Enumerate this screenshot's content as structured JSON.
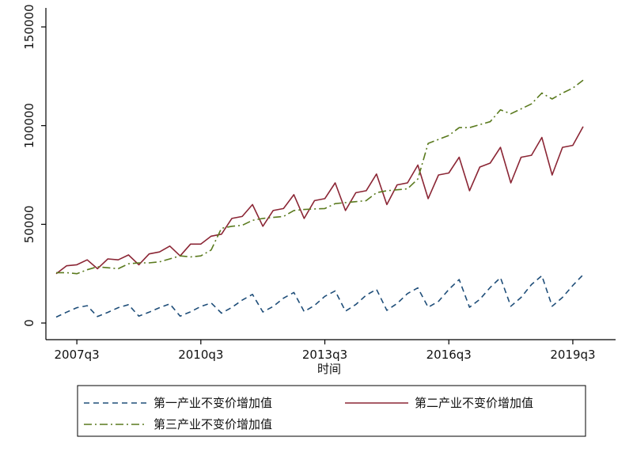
{
  "chart_data": {
    "type": "line",
    "title": "",
    "xlabel": "时间",
    "ylabel": "",
    "ylim": [
      0,
      150000
    ],
    "yticks": [
      "0",
      "50000",
      "100000",
      "150000"
    ],
    "xticks": [
      "2007q3",
      "2010q3",
      "2013q3",
      "2016q3",
      "2019q3"
    ],
    "x_start": "2007q1",
    "grid": false,
    "legend_position": "bottom",
    "series": [
      {
        "name": "第一产业不变价增加值",
        "style": "dashed",
        "color": "#1f4e79",
        "values": [
          3000,
          5500,
          7800,
          8800,
          3300,
          5400,
          7800,
          9300,
          3500,
          5500,
          7800,
          9700,
          3500,
          5700,
          8400,
          10200,
          5000,
          7900,
          11600,
          14500,
          5600,
          8400,
          12600,
          15500,
          5800,
          8900,
          13500,
          16300,
          6000,
          9400,
          14100,
          17100,
          6400,
          9900,
          14900,
          17800,
          8000,
          11000,
          17000,
          22000,
          8000,
          12000,
          18000,
          23000,
          8500,
          13000,
          19500,
          24000,
          8500,
          13000,
          19000,
          24500
        ]
      },
      {
        "name": "第二产业不变价增加值",
        "style": "solid",
        "color": "#8b2635",
        "values": [
          25000,
          29000,
          29500,
          32000,
          27500,
          32500,
          32000,
          34500,
          29500,
          35000,
          36000,
          39000,
          34000,
          40000,
          40000,
          44000,
          45000,
          53000,
          54000,
          60000,
          49000,
          57000,
          58000,
          65000,
          53000,
          62000,
          63000,
          71000,
          57000,
          66000,
          67000,
          75500,
          60000,
          70000,
          71000,
          80000,
          63000,
          75000,
          76000,
          84000,
          67000,
          79000,
          81000,
          89000,
          71000,
          84000,
          85000,
          94000,
          75000,
          89000,
          90000,
          99500
        ]
      },
      {
        "name": "第三产业不变价增加值",
        "style": "dashdot",
        "color": "#5a7a1e",
        "values": [
          25500,
          25500,
          25000,
          27000,
          28500,
          28000,
          27500,
          30000,
          30500,
          30500,
          31000,
          32500,
          34000,
          33500,
          34000,
          37000,
          48000,
          49000,
          49500,
          52000,
          53000,
          53500,
          54000,
          57000,
          57500,
          57800,
          58000,
          60500,
          61000,
          61500,
          62000,
          66000,
          67000,
          67500,
          68000,
          73000,
          91000,
          93000,
          95000,
          99000,
          99000,
          100500,
          102000,
          108000,
          106000,
          108500,
          111000,
          116500,
          113500,
          116500,
          119000,
          123000
        ]
      }
    ]
  }
}
